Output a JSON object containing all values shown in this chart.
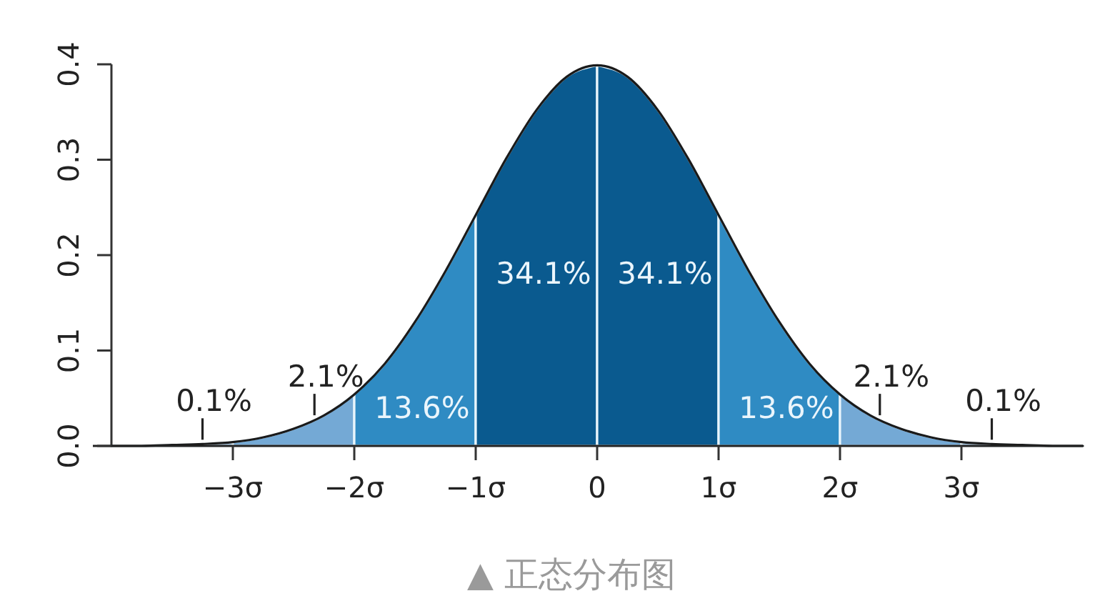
{
  "chart_data": {
    "type": "area",
    "series": [
      {
        "color": "#a6c7e4",
        "x": [
          -4,
          -3.75,
          -3.5,
          -3.25,
          -3
        ],
        "values": [
          0,
          0,
          0.001,
          0.002,
          0.004
        ]
      },
      {
        "color": "#74a9d5",
        "x": [
          -3,
          -2.75,
          -2.5,
          -2.25,
          -2
        ],
        "values": [
          0.004,
          0.009,
          0.018,
          0.032,
          0.054
        ]
      },
      {
        "color": "#2f8bc3",
        "x": [
          -2,
          -1.75,
          -1.5,
          -1.25,
          -1
        ],
        "values": [
          0.054,
          0.086,
          0.13,
          0.183,
          0.242
        ]
      },
      {
        "color": "#0a5a8f",
        "x": [
          -1,
          -0.75,
          -0.5,
          -0.25,
          0
        ],
        "values": [
          0.242,
          0.301,
          0.352,
          0.387,
          0.399
        ]
      },
      {
        "color": "#0a5a8f",
        "x": [
          0,
          0.25,
          0.5,
          0.75,
          1
        ],
        "values": [
          0.399,
          0.387,
          0.352,
          0.301,
          0.242
        ]
      },
      {
        "color": "#2f8bc3",
        "x": [
          1,
          1.25,
          1.5,
          1.75,
          2
        ],
        "values": [
          0.242,
          0.183,
          0.13,
          0.086,
          0.054
        ]
      },
      {
        "color": "#74a9d5",
        "x": [
          2,
          2.25,
          2.5,
          2.75,
          3
        ],
        "values": [
          0.054,
          0.032,
          0.018,
          0.009,
          0.004
        ]
      },
      {
        "color": "#a6c7e4",
        "x": [
          3,
          3.25,
          3.5,
          3.75,
          4
        ],
        "values": [
          0.004,
          0.002,
          0.001,
          0,
          0
        ]
      },
      {
        "type": "line",
        "color": "#1a1a1a",
        "x": [
          -4,
          -3.75,
          -3.5,
          -3.25,
          -3,
          -2.75,
          -2.5,
          -2.25,
          -2,
          -1.75,
          -1.5,
          -1.25,
          -1,
          -0.75,
          -0.5,
          -0.25,
          0,
          0.25,
          0.5,
          0.75,
          1,
          1.25,
          1.5,
          1.75,
          2,
          2.25,
          2.5,
          2.75,
          3,
          3.25,
          3.5,
          3.75,
          4
        ],
        "values": [
          0,
          0,
          0.001,
          0.002,
          0.004,
          0.009,
          0.018,
          0.032,
          0.054,
          0.086,
          0.13,
          0.183,
          0.242,
          0.301,
          0.352,
          0.387,
          0.399,
          0.387,
          0.352,
          0.301,
          0.242,
          0.183,
          0.13,
          0.086,
          0.054,
          0.032,
          0.018,
          0.009,
          0.004,
          0.002,
          0.001,
          0,
          0
        ]
      }
    ],
    "xlim": [
      -4,
      4
    ],
    "ylim": [
      0,
      0.4
    ],
    "xticks": [
      {
        "value": -3,
        "label": "−3σ"
      },
      {
        "value": -2,
        "label": "−2σ"
      },
      {
        "value": -1,
        "label": "−1σ"
      },
      0,
      {
        "value": 1,
        "label": "1σ"
      },
      {
        "value": 2,
        "label": "2σ"
      },
      {
        "value": 3,
        "label": "3σ"
      }
    ],
    "yticks": [
      {
        "value": 0,
        "label": "0.0"
      },
      0.1,
      0.2,
      0.3,
      0.4
    ],
    "annotations": [
      "0.1%",
      "2.1%",
      "13.6%",
      "34.1%",
      "34.1%",
      "13.6%",
      "2.1%",
      "0.1%",
      "▲ 正态分布图"
    ]
  }
}
